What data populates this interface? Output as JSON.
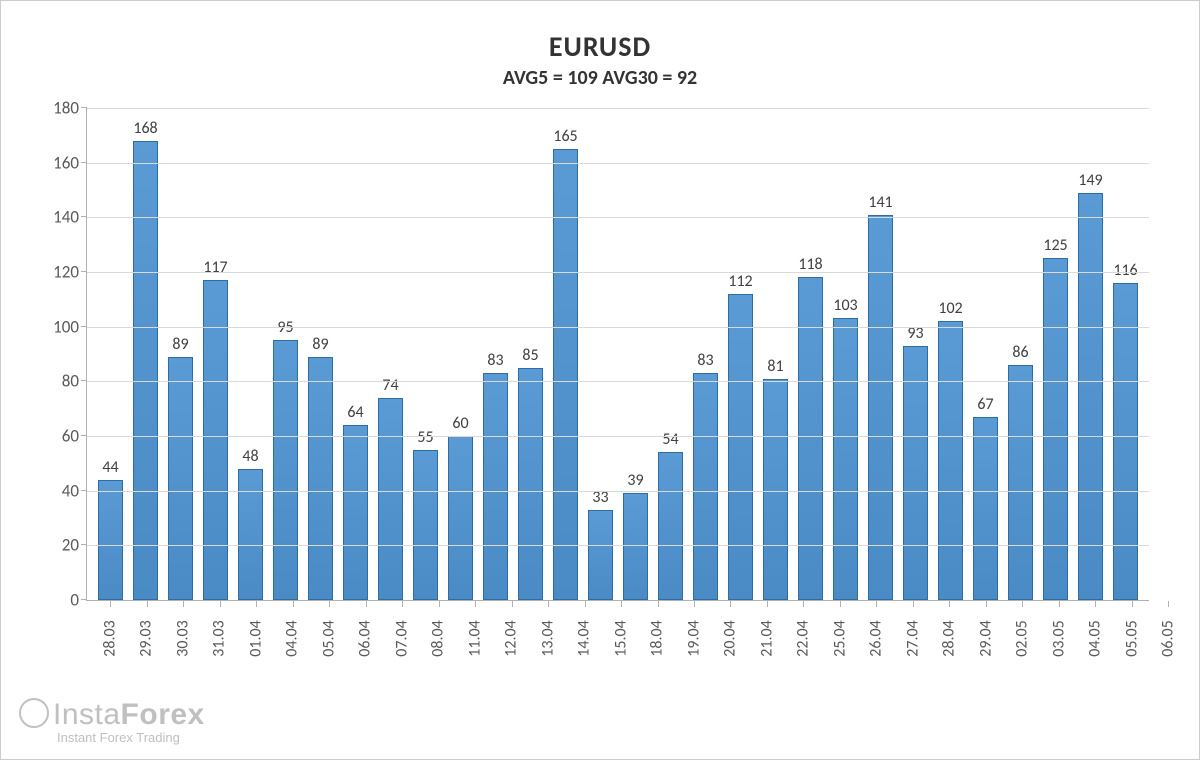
{
  "chart": {
    "type": "bar",
    "title": "EURUSD",
    "subtitle_prefix_1": "AVG5 = ",
    "avg5": "109",
    "subtitle_mid": " AVG30 = ",
    "avg30": "92",
    "title_fontsize": 28,
    "subtitle_fontsize": 20,
    "title_color": "#333333",
    "ylim": [
      0,
      180
    ],
    "ytick_step": 20,
    "yticks": [
      0,
      20,
      40,
      60,
      80,
      100,
      120,
      140,
      160,
      180
    ],
    "grid_color": "#d9d9d9",
    "axis_color": "#b0b0b0",
    "background_color": "#ffffff",
    "bar_fill_top": "#5b9bd5",
    "bar_fill_bottom": "#4a8bc5",
    "bar_border": "#2e6da4",
    "bar_width_ratio": 0.72,
    "value_label_fontsize": 16,
    "value_label_color": "#404040",
    "axis_label_fontsize": 17,
    "axis_label_color": "#595959",
    "x_label_rotation": -90,
    "categories": [
      "28.03",
      "29.03",
      "30.03",
      "31.03",
      "01.04",
      "04.04",
      "05.04",
      "06.04",
      "07.04",
      "08.04",
      "11.04",
      "12.04",
      "13.04",
      "14.04",
      "15.04",
      "18.04",
      "19.04",
      "20.04",
      "21.04",
      "22.04",
      "25.04",
      "26.04",
      "27.04",
      "28.04",
      "29.04",
      "02.05",
      "03.05",
      "04.05",
      "05.05",
      "06.05"
    ],
    "values": [
      44,
      168,
      89,
      117,
      48,
      95,
      89,
      64,
      74,
      55,
      60,
      83,
      85,
      165,
      33,
      39,
      54,
      83,
      112,
      81,
      118,
      103,
      141,
      93,
      102,
      67,
      86,
      125,
      149,
      116
    ]
  },
  "watermark": {
    "brand_light": "Insta",
    "brand_bold": "Forex",
    "tagline": "Instant Forex Trading"
  }
}
